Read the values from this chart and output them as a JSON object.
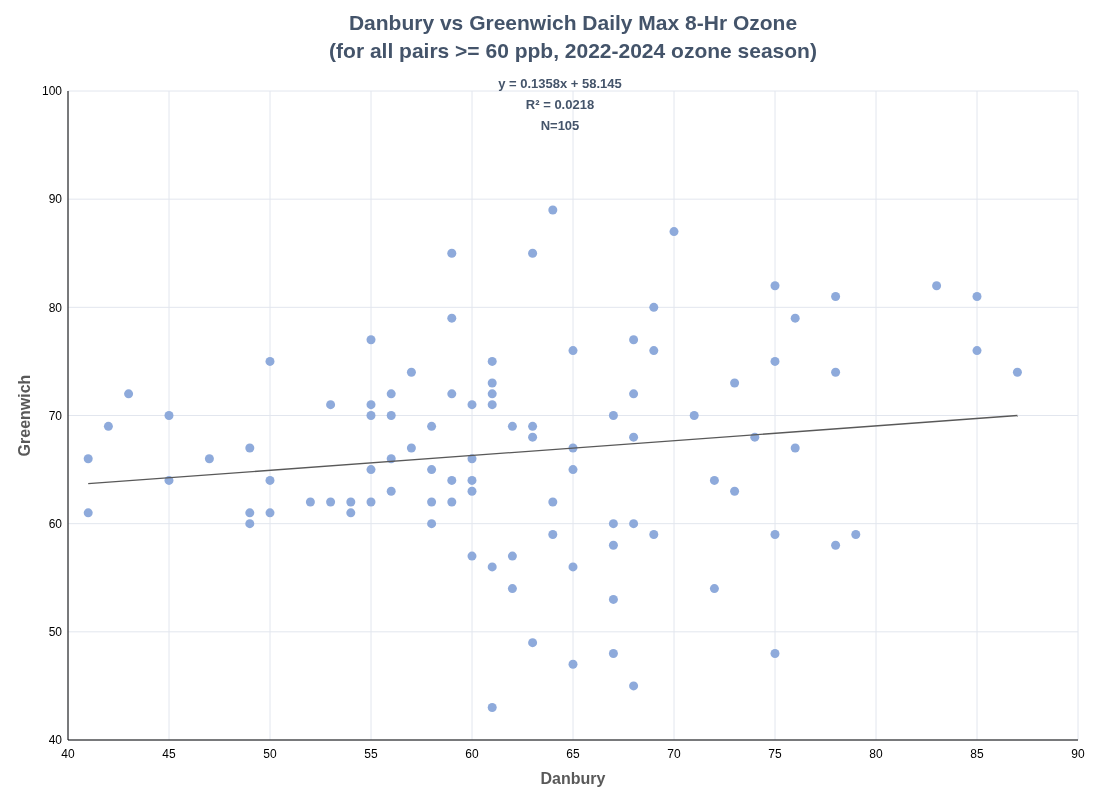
{
  "chart_data": {
    "type": "scatter",
    "title": "Danbury vs Greenwich Daily Max 8-Hr Ozone",
    "subtitle": "(for all pairs >= 60 ppb, 2022-2024 ozone season)",
    "xlabel": "Danbury",
    "ylabel": "Greenwich",
    "xlim": [
      40,
      90
    ],
    "xticks": [
      40,
      45,
      50,
      55,
      60,
      65,
      70,
      75,
      80,
      85,
      90
    ],
    "ylim": [
      40,
      100
    ],
    "yticks": [
      40,
      50,
      60,
      70,
      80,
      90,
      100
    ],
    "grid": true,
    "annotations": [
      "y = 0.1358x + 58.145",
      "R² = 0.0218",
      "N=105"
    ],
    "series": [
      {
        "marker": "circle",
        "color": "#8eaadb",
        "x": [
          41,
          41,
          42,
          43,
          45,
          45,
          47,
          49,
          49,
          49,
          50,
          50,
          50,
          52,
          53,
          53,
          54,
          54,
          55,
          55,
          55,
          55,
          55,
          56,
          56,
          56,
          56,
          57,
          57,
          58,
          58,
          58,
          58,
          59,
          59,
          59,
          59,
          59,
          60,
          60,
          60,
          60,
          60,
          61,
          61,
          61,
          61,
          61,
          61,
          62,
          62,
          62,
          63,
          63,
          63,
          63,
          64,
          64,
          64,
          65,
          65,
          65,
          65,
          65,
          67,
          67,
          67,
          67,
          67,
          68,
          68,
          68,
          68,
          68,
          69,
          69,
          69,
          70,
          71,
          72,
          72,
          73,
          73,
          74,
          75,
          75,
          75,
          75,
          76,
          76,
          78,
          78,
          78,
          79,
          83,
          85,
          85,
          87
        ],
        "values": [
          66,
          61,
          69,
          72,
          70,
          64,
          66,
          67,
          61,
          60,
          75,
          64,
          61,
          62,
          71,
          62,
          62,
          61,
          77,
          71,
          70,
          65,
          62,
          72,
          70,
          66,
          63,
          74,
          67,
          69,
          65,
          62,
          60,
          85,
          79,
          72,
          64,
          62,
          71,
          66,
          64,
          63,
          57,
          75,
          73,
          72,
          71,
          56,
          43,
          69,
          57,
          54,
          85,
          69,
          68,
          49,
          89,
          62,
          59,
          76,
          67,
          65,
          56,
          47,
          70,
          60,
          58,
          53,
          48,
          77,
          72,
          68,
          60,
          45,
          80,
          76,
          59,
          87,
          70,
          64,
          54,
          73,
          63,
          68,
          82,
          75,
          59,
          48,
          79,
          67,
          81,
          74,
          58,
          59,
          82,
          81,
          76,
          74
        ]
      },
      {
        "type": "line",
        "color": "#595959",
        "line_style": "solid",
        "x": [
          41,
          87
        ],
        "values": [
          63.7,
          70.0
        ]
      }
    ]
  }
}
